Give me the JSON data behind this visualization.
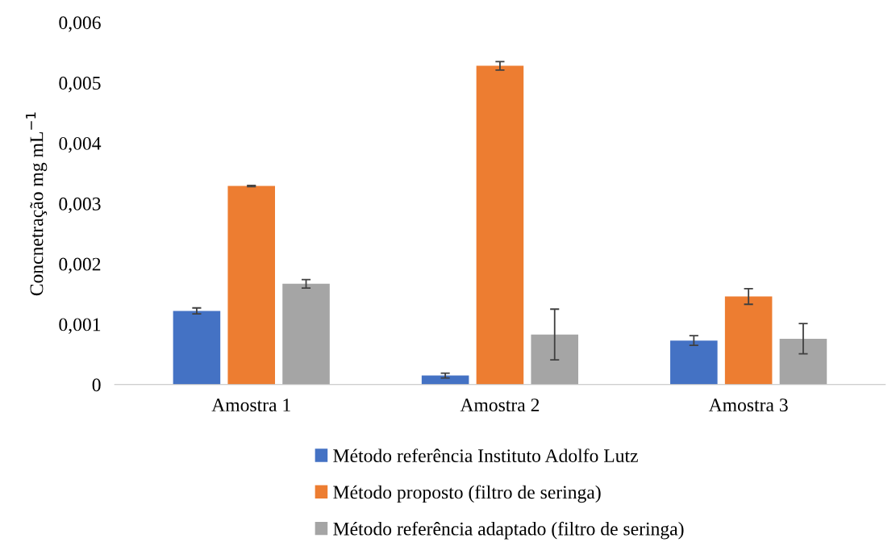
{
  "chart_data": {
    "type": "bar",
    "ylabel": "Concnetração mg mL$^{−1}$",
    "categories": [
      "Amostra 1",
      "Amostra 2",
      "Amostra 3"
    ],
    "series": [
      {
        "name": "Método referência Instituto Adolfo Lutz",
        "color": "#4472c4",
        "values": [
          0.00122,
          0.00015,
          0.00073
        ],
        "errors": [
          5e-05,
          4e-05,
          8e-05
        ]
      },
      {
        "name": "Método proposto (filtro de seringa)",
        "color": "#ed7d31",
        "values": [
          0.00329,
          0.00528,
          0.00146
        ],
        "errors": [
          1e-05,
          7e-05,
          0.00013
        ]
      },
      {
        "name": "Método referência adaptado (filtro de seringa)",
        "color": "#a5a5a5",
        "values": [
          0.00167,
          0.00083,
          0.00076
        ],
        "errors": [
          7e-05,
          0.00042,
          0.00025
        ]
      }
    ],
    "ylim": [
      0,
      0.006
    ],
    "yticks": [
      {
        "value": 0,
        "label": "0"
      },
      {
        "value": 0.001,
        "label": "0,001"
      },
      {
        "value": 0.002,
        "label": "0,002"
      },
      {
        "value": 0.003,
        "label": "0,003"
      },
      {
        "value": 0.004,
        "label": "0,004"
      },
      {
        "value": 0.005,
        "label": "0,005"
      },
      {
        "value": 0.006,
        "label": "0,006"
      }
    ],
    "grid": false,
    "legend": "bottom"
  }
}
